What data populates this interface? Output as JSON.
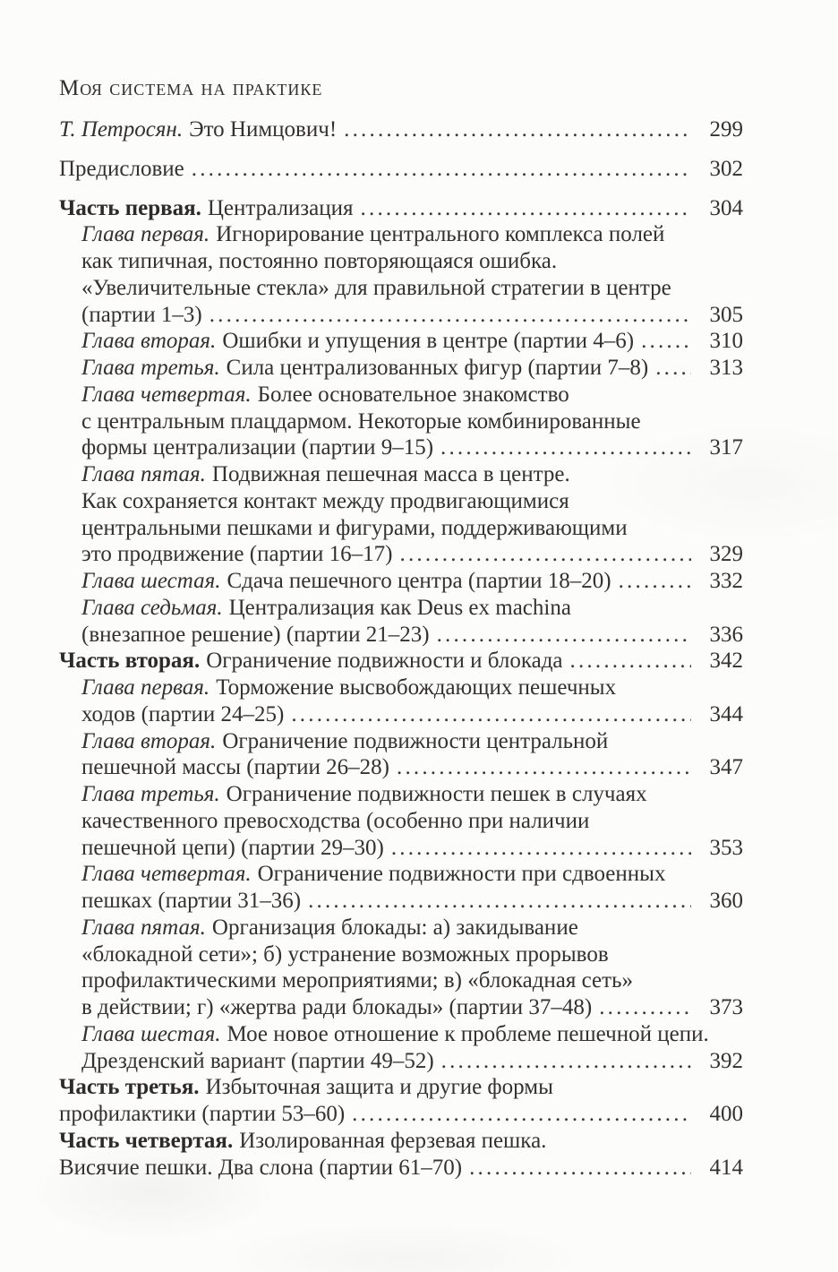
{
  "toc": {
    "header": "Моя система на практике",
    "entries": [
      {
        "lead": "Т. Петросян.",
        "lead_style": "italic",
        "indent": false,
        "gap": true,
        "lines": [
          "Это Нимцович!"
        ],
        "page": "299"
      },
      {
        "lead": "",
        "lead_style": "",
        "indent": false,
        "gap": true,
        "lines": [
          "Предисловие"
        ],
        "page": "302"
      },
      {
        "lead": "Часть первая.",
        "lead_style": "bold",
        "indent": false,
        "gap": true,
        "lines": [
          "Централизация"
        ],
        "page": "304"
      },
      {
        "lead": "Глава первая.",
        "lead_style": "italic",
        "indent": true,
        "gap": false,
        "lines": [
          "Игнорирование центрального комплекса полей",
          "как типичная, постоянно повторяющаяся ошибка.",
          "«Увеличительные стекла» для правильной стратегии в центре",
          "(партии 1–3)"
        ],
        "page": "305"
      },
      {
        "lead": "Глава вторая.",
        "lead_style": "italic",
        "indent": true,
        "gap": false,
        "lines": [
          "Ошибки и упущения в центре (партии 4–6)"
        ],
        "page": "310"
      },
      {
        "lead": "Глава третья.",
        "lead_style": "italic",
        "indent": true,
        "gap": false,
        "lines": [
          "Сила централизованных фигур (партии 7–8)"
        ],
        "page": "313"
      },
      {
        "lead": "Глава четвертая.",
        "lead_style": "italic",
        "indent": true,
        "gap": false,
        "lines": [
          "Более основательное знакомство",
          "с центральным плацдармом. Некоторые комбинированные",
          "формы централизации (партии 9–15)"
        ],
        "page": "317"
      },
      {
        "lead": "Глава пятая.",
        "lead_style": "italic",
        "indent": true,
        "gap": false,
        "lines": [
          "Подвижная пешечная масса в центре.",
          "Как сохраняется контакт между продвигающимися",
          "центральными пешками и фигурами, поддерживающими",
          "это продвижение (партии 16–17)"
        ],
        "page": "329"
      },
      {
        "lead": "Глава шестая.",
        "lead_style": "italic",
        "indent": true,
        "gap": false,
        "lines": [
          "Сдача пешечного центра (партии 18–20)"
        ],
        "page": "332"
      },
      {
        "lead": "Глава седьмая.",
        "lead_style": "italic",
        "indent": true,
        "gap": false,
        "lines": [
          "Централизация как Deus ex machina",
          "(внезапное решение) (партии 21–23)"
        ],
        "page": "336"
      },
      {
        "lead": "Часть вторая.",
        "lead_style": "bold",
        "indent": false,
        "gap": false,
        "lines": [
          "Ограничение подвижности и блокада"
        ],
        "page": "342"
      },
      {
        "lead": "Глава первая.",
        "lead_style": "italic",
        "indent": true,
        "gap": false,
        "lines": [
          "Торможение высвобождающих пешечных",
          "ходов (партии 24–25)"
        ],
        "page": "344"
      },
      {
        "lead": "Глава вторая.",
        "lead_style": "italic",
        "indent": true,
        "gap": false,
        "lines": [
          "Ограничение подвижности центральной",
          "пешечной массы (партии 26–28)"
        ],
        "page": "347"
      },
      {
        "lead": "Глава третья.",
        "lead_style": "italic",
        "indent": true,
        "gap": false,
        "lines": [
          "Ограничение подвижности пешек в случаях",
          "качественного превосходства (особенно при наличии",
          "пешечной цепи) (партии 29–30)"
        ],
        "page": "353"
      },
      {
        "lead": "Глава четвертая.",
        "lead_style": "italic",
        "indent": true,
        "gap": false,
        "lines": [
          "Ограничение подвижности при сдвоенных",
          "пешках (партии 31–36)"
        ],
        "page": "360"
      },
      {
        "lead": "Глава пятая.",
        "lead_style": "italic",
        "indent": true,
        "gap": false,
        "lines": [
          "Организация блокады: а) закидывание",
          "«блокадной сети»; б) устранение возможных прорывов",
          "профилактическими мероприятиями; в) «блокадная сеть»",
          "в действии; г) «жертва ради блокады» (партии 37–48)"
        ],
        "page": "373"
      },
      {
        "lead": "Глава шестая.",
        "lead_style": "italic",
        "indent": true,
        "gap": false,
        "lines": [
          "Мое новое отношение к проблеме пешечной цепи.",
          "Дрезденский вариант (партии 49–52)"
        ],
        "page": "392"
      },
      {
        "lead": "Часть третья.",
        "lead_style": "bold",
        "indent": false,
        "gap": false,
        "lines": [
          "Избыточная защита и другие формы",
          "профилактики (партии 53–60)"
        ],
        "page": "400"
      },
      {
        "lead": "Часть четвертая.",
        "lead_style": "bold",
        "indent": false,
        "gap": false,
        "lines": [
          "Изолированная ферзевая пешка.",
          "Висячие пешки. Два слона (партии 61–70)"
        ],
        "page": "414"
      }
    ]
  }
}
